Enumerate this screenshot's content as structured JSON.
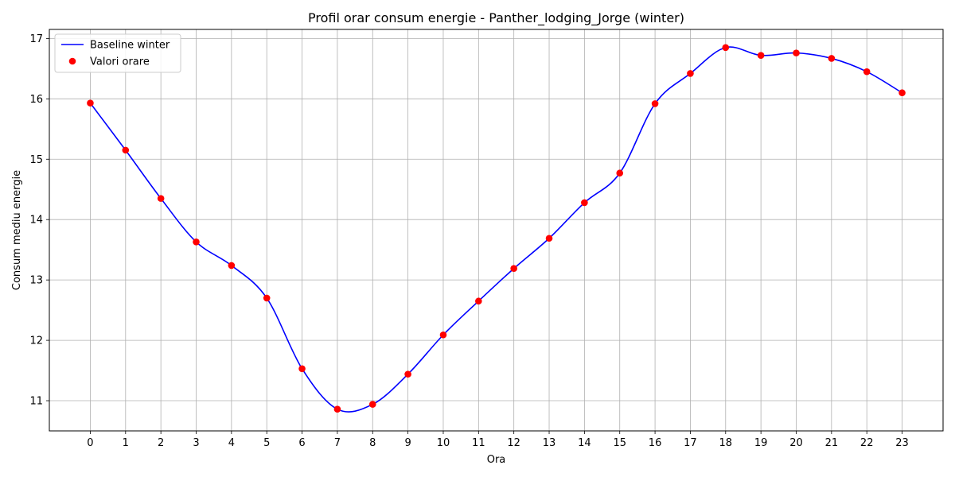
{
  "chart_data": {
    "type": "line",
    "title": "Profil orar consum energie - Panther_lodging_Jorge (winter)",
    "xlabel": "Ora",
    "ylabel": "Consum mediu energie",
    "x": [
      0,
      1,
      2,
      3,
      4,
      5,
      6,
      7,
      8,
      9,
      10,
      11,
      12,
      13,
      14,
      15,
      16,
      17,
      18,
      19,
      20,
      21,
      22,
      23
    ],
    "series": [
      {
        "name": "Baseline winter",
        "kind": "line",
        "color": "#0000ff",
        "values": [
          15.93,
          15.15,
          14.35,
          13.63,
          13.24,
          12.7,
          11.53,
          10.86,
          10.94,
          11.44,
          12.09,
          12.65,
          13.19,
          13.69,
          14.28,
          14.77,
          15.92,
          16.42,
          16.85,
          16.72,
          16.76,
          16.67,
          16.45,
          16.1
        ]
      },
      {
        "name": "Valori orare",
        "kind": "scatter",
        "color": "#ff0000",
        "values": [
          15.93,
          15.15,
          14.35,
          13.63,
          13.24,
          12.7,
          11.53,
          10.86,
          10.94,
          11.44,
          12.09,
          12.65,
          13.19,
          13.69,
          14.28,
          14.77,
          15.92,
          16.42,
          16.85,
          16.72,
          16.76,
          16.67,
          16.45,
          16.1
        ]
      }
    ],
    "xticks": [
      0,
      1,
      2,
      3,
      4,
      5,
      6,
      7,
      8,
      9,
      10,
      11,
      12,
      13,
      14,
      15,
      16,
      17,
      18,
      19,
      20,
      21,
      22,
      23
    ],
    "yticks": [
      11,
      12,
      13,
      14,
      15,
      16,
      17
    ],
    "xlim": [
      -1.16,
      24.16
    ],
    "ylim": [
      10.5,
      17.15
    ],
    "grid": true,
    "legend_position": "top-left"
  }
}
